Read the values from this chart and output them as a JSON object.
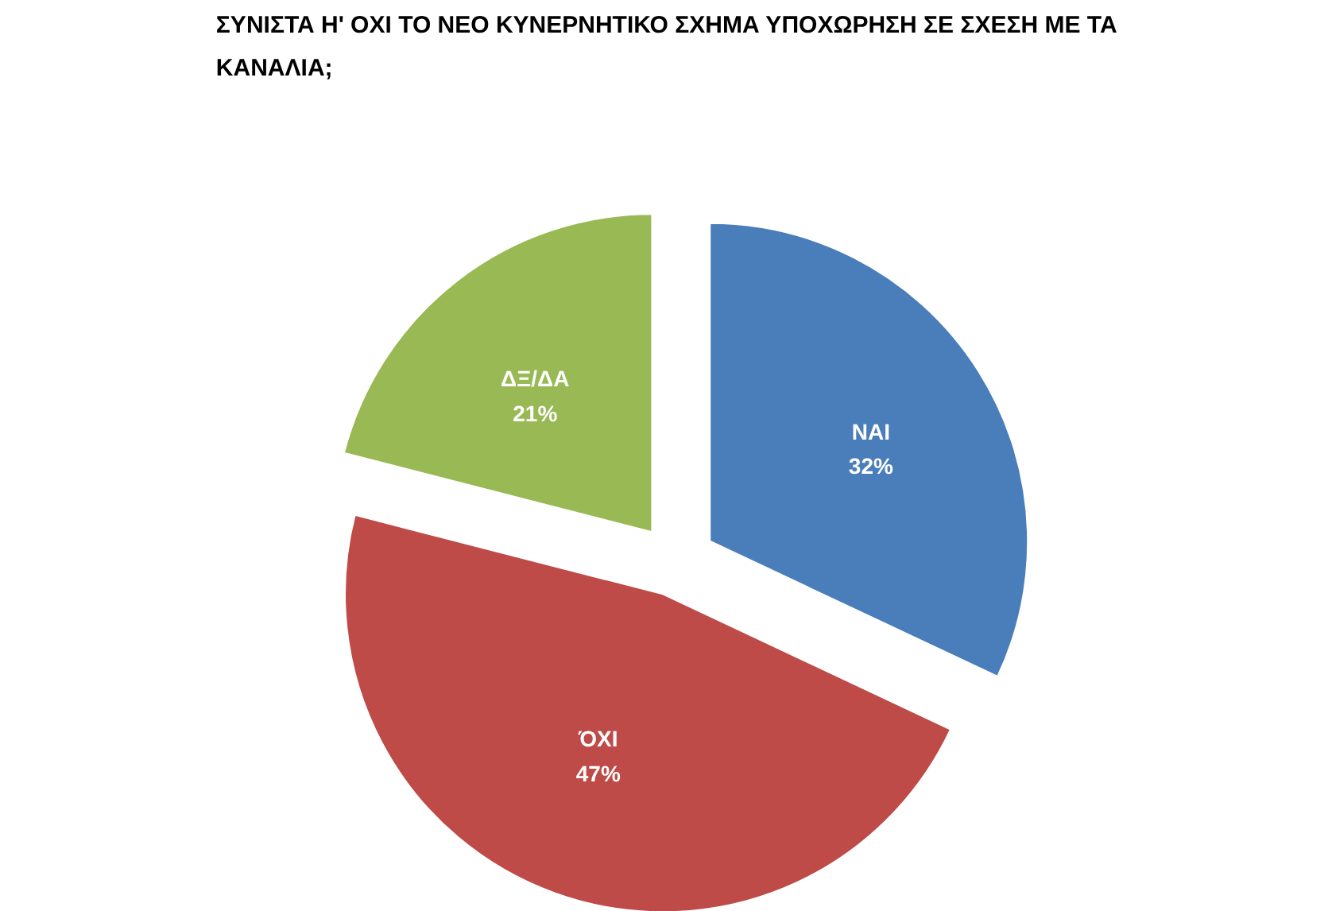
{
  "chart_data": {
    "type": "pie",
    "title": "ΣΥΝΙΣΤΑ Η' ΟΧΙ ΤΟ ΝΕΟ ΚΥΝΕΡΝΗΤΙΚΟ ΣΧΗΜΑ ΥΠΟΧΩΡΗΣΗ ΣΕ ΣΧΕΣΗ ΜΕ ΤΑ ΚΑΝΑΛΙΑ;",
    "categories": [
      "ΝΑΙ",
      "ΌΧΙ",
      "ΔΞ/ΔΑ"
    ],
    "values": [
      32,
      47,
      21
    ],
    "colors": [
      "#4a7ebb",
      "#be4b48",
      "#98b954"
    ],
    "value_labels": [
      "32%",
      "47%",
      "21%"
    ],
    "legend": false
  }
}
